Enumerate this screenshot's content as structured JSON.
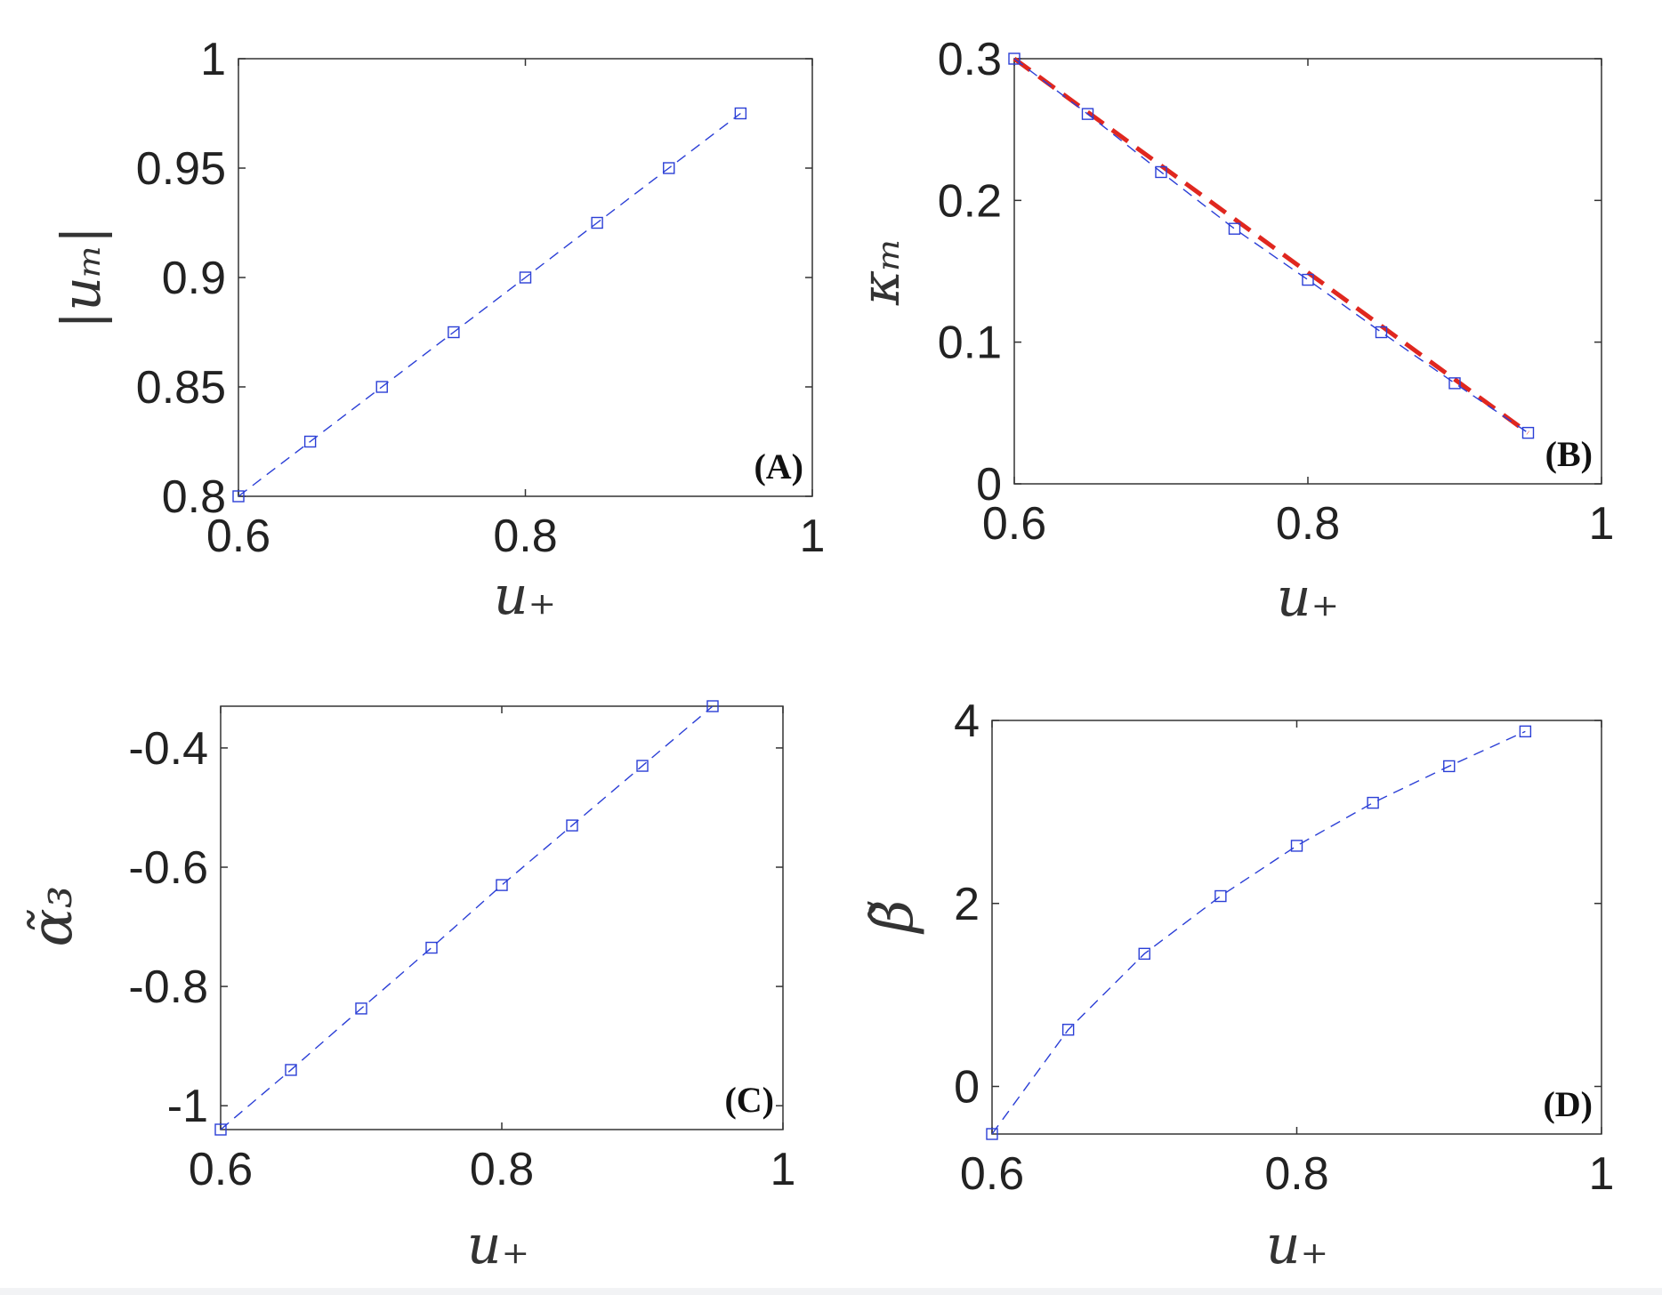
{
  "chart_data": [
    {
      "type": "line",
      "panel_label": "(A)",
      "xlabel": "u₊",
      "ylabel": "|uₘ|",
      "xlim": [
        0.6,
        1.0
      ],
      "ylim": [
        0.8,
        1.0
      ],
      "xticks": [
        0.6,
        0.8,
        1.0
      ],
      "xtick_labels": [
        "0.6",
        "0.8",
        "1"
      ],
      "yticks": [
        0.8,
        0.85,
        0.9,
        0.95,
        1.0
      ],
      "ytick_labels": [
        "0.8",
        "0.85",
        "0.9",
        "0.95",
        "1"
      ],
      "grid": false,
      "series": [
        {
          "color": "#2b3fd6",
          "style": "dashed",
          "marker": "square",
          "x": [
            0.6,
            0.65,
            0.7,
            0.75,
            0.8,
            0.85,
            0.9,
            0.95
          ],
          "y": [
            0.8,
            0.825,
            0.85,
            0.875,
            0.9,
            0.925,
            0.95,
            0.975
          ]
        }
      ]
    },
    {
      "type": "line",
      "panel_label": "(B)",
      "xlabel": "u₊",
      "ylabel": "κₘ",
      "xlim": [
        0.6,
        1.0
      ],
      "ylim": [
        0.0,
        0.3
      ],
      "xticks": [
        0.6,
        0.8,
        1.0
      ],
      "xtick_labels": [
        "0.6",
        "0.8",
        "1"
      ],
      "yticks": [
        0.0,
        0.1,
        0.2,
        0.3
      ],
      "ytick_labels": [
        "0",
        "0.1",
        "0.2",
        "0.3"
      ],
      "grid": false,
      "series": [
        {
          "color": "#e0271f",
          "style": "thick-dashed",
          "marker": "none",
          "x": [
            0.6,
            0.95
          ],
          "y": [
            0.3,
            0.036
          ]
        },
        {
          "color": "#2b3fd6",
          "style": "dashed",
          "marker": "square",
          "x": [
            0.6,
            0.65,
            0.7,
            0.75,
            0.8,
            0.85,
            0.9,
            0.95
          ],
          "y": [
            0.3,
            0.261,
            0.22,
            0.18,
            0.144,
            0.107,
            0.071,
            0.036
          ]
        }
      ]
    },
    {
      "type": "line",
      "panel_label": "(C)",
      "xlabel": "u₊",
      "ylabel": "α̃₃",
      "xlim": [
        0.6,
        1.0
      ],
      "ylim": [
        -1.04,
        -0.33
      ],
      "xticks": [
        0.6,
        0.8,
        1.0
      ],
      "xtick_labels": [
        "0.6",
        "0.8",
        "1"
      ],
      "yticks": [
        -1.0,
        -0.8,
        -0.6,
        -0.4
      ],
      "ytick_labels": [
        "-1",
        "-0.8",
        "-0.6",
        "-0.4"
      ],
      "grid": false,
      "series": [
        {
          "color": "#2b3fd6",
          "style": "dashed",
          "marker": "square",
          "x": [
            0.6,
            0.65,
            0.7,
            0.75,
            0.8,
            0.85,
            0.9,
            0.95
          ],
          "y": [
            -1.04,
            -0.94,
            -0.837,
            -0.735,
            -0.63,
            -0.53,
            -0.43,
            -0.33
          ]
        }
      ]
    },
    {
      "type": "line",
      "panel_label": "(D)",
      "xlabel": "u₊",
      "ylabel": "β̃",
      "xlim": [
        0.6,
        1.0
      ],
      "ylim": [
        -0.52,
        4.0
      ],
      "xticks": [
        0.6,
        0.8,
        1.0
      ],
      "xtick_labels": [
        "0.6",
        "0.8",
        "1"
      ],
      "yticks": [
        0,
        2,
        4
      ],
      "ytick_labels": [
        "0",
        "2",
        "4"
      ],
      "grid": false,
      "series": [
        {
          "color": "#2b3fd6",
          "style": "dashed",
          "marker": "square",
          "x": [
            0.6,
            0.65,
            0.7,
            0.75,
            0.8,
            0.85,
            0.9,
            0.95
          ],
          "y": [
            -0.52,
            0.62,
            1.45,
            2.08,
            2.63,
            3.1,
            3.5,
            3.88
          ]
        }
      ]
    }
  ]
}
